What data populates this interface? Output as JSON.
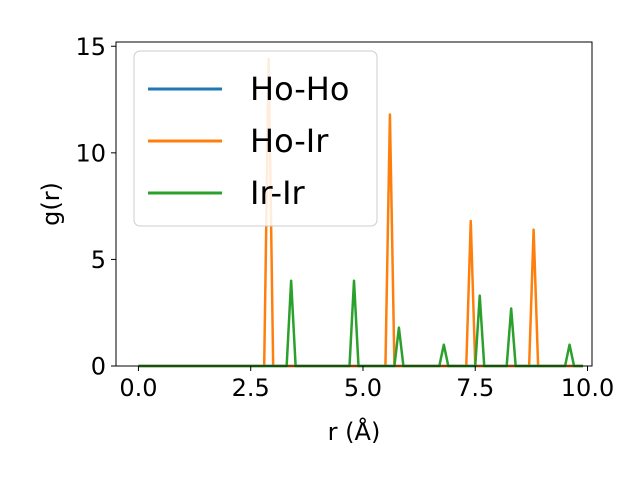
{
  "chart_data": {
    "type": "line",
    "xlabel": "r (Å)",
    "ylabel": "g(r)",
    "xlim": [
      -0.5,
      10.1
    ],
    "ylim": [
      0,
      15.2
    ],
    "x_ticks": [
      0.0,
      2.5,
      5.0,
      7.5,
      10.0
    ],
    "x_tick_labels": [
      "0.0",
      "2.5",
      "5.0",
      "7.5",
      "10.0"
    ],
    "y_ticks": [
      0,
      5,
      10,
      15
    ],
    "y_tick_labels": [
      "0",
      "5",
      "10",
      "15"
    ],
    "grid": false,
    "legend_position": "upper-left",
    "series": [
      {
        "name": "Ho-Ho",
        "color": "#1f77b4",
        "x": [
          0.0,
          9.9
        ],
        "y": [
          0,
          0
        ]
      },
      {
        "name": "Ho-Ir",
        "color": "#ff7f0e",
        "x": [
          0.0,
          2.8,
          2.9,
          3.0,
          5.5,
          5.6,
          5.7,
          7.3,
          7.4,
          7.5,
          8.7,
          8.8,
          8.9,
          9.9
        ],
        "y": [
          0,
          0,
          14.4,
          0,
          0,
          11.8,
          0,
          0,
          6.8,
          0,
          0,
          6.4,
          0,
          0
        ]
      },
      {
        "name": "Ir-Ir",
        "color": "#2ca02c",
        "x": [
          0.0,
          3.3,
          3.4,
          3.5,
          4.7,
          4.8,
          4.9,
          5.7,
          5.8,
          5.9,
          6.7,
          6.8,
          6.9,
          7.5,
          7.6,
          7.7,
          8.2,
          8.3,
          8.4,
          9.5,
          9.6,
          9.7,
          9.9
        ],
        "y": [
          0,
          0,
          4.0,
          0,
          0,
          4.0,
          0,
          0,
          1.8,
          0,
          0,
          1.0,
          0,
          0,
          3.3,
          0,
          0,
          2.7,
          0,
          0,
          1.0,
          0,
          0
        ]
      }
    ]
  }
}
